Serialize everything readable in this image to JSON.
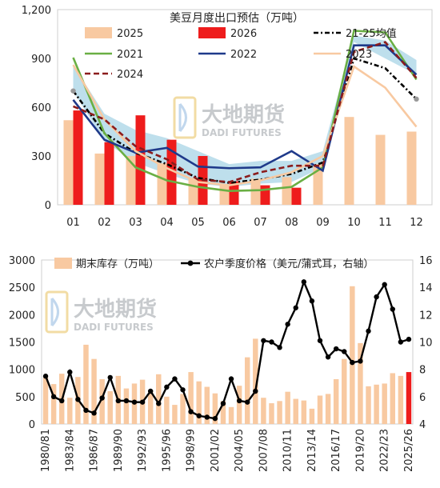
{
  "chart_data": [
    {
      "type": "bar",
      "title": "美豆月度出口预估（万吨）",
      "categories": [
        "01",
        "02",
        "03",
        "04",
        "05",
        "06",
        "07",
        "08",
        "09",
        "10",
        "11",
        "12"
      ],
      "ylim": [
        0,
        1200
      ],
      "yticks": [
        "0",
        "300",
        "600",
        "900",
        "1,200"
      ],
      "grid": false,
      "band": {
        "low": [
          700,
          390,
          260,
          190,
          130,
          110,
          130,
          140,
          230,
          1000,
          900,
          800
        ],
        "high": [
          860,
          560,
          460,
          410,
          330,
          250,
          270,
          270,
          330,
          1040,
          1010,
          890
        ]
      },
      "series": [
        {
          "name": "2025",
          "kind": "bar",
          "color": "#f8c9a1",
          "values": [
            520,
            315,
            300,
            255,
            165,
            120,
            160,
            170,
            250,
            540,
            430,
            450
          ]
        },
        {
          "name": "2026",
          "kind": "bar",
          "color": "#ee1c1c",
          "values": [
            580,
            385,
            550,
            400,
            300,
            145,
            120,
            105,
            null,
            null,
            null,
            null
          ]
        },
        {
          "name": "21-25均值",
          "kind": "line",
          "color": "#000000",
          "dash": "dash-dot",
          "values": [
            700,
            440,
            320,
            250,
            165,
            135,
            155,
            190,
            260,
            900,
            840,
            650
          ]
        },
        {
          "name": "2021",
          "kind": "line",
          "color": "#6aaf44",
          "values": [
            905,
            440,
            230,
            150,
            110,
            85,
            90,
            110,
            230,
            1070,
            1060,
            770
          ]
        },
        {
          "name": "2022",
          "kind": "line",
          "color": "#1f3a8a",
          "values": [
            645,
            400,
            320,
            350,
            235,
            225,
            230,
            330,
            210,
            980,
            980,
            800
          ]
        },
        {
          "name": "2023",
          "kind": "line",
          "color": "#f8c9a1",
          "values": [
            860,
            525,
            330,
            225,
            140,
            120,
            150,
            200,
            300,
            850,
            720,
            480
          ]
        },
        {
          "name": "2024",
          "kind": "line",
          "color": "#8b1c1c",
          "dash": "dash",
          "values": [
            605,
            525,
            360,
            280,
            155,
            140,
            200,
            240,
            240,
            940,
            1000,
            780
          ]
        }
      ]
    },
    {
      "type": "bar",
      "categories": [
        "1980/81",
        "1981/82",
        "1982/83",
        "1983/84",
        "1984/85",
        "1985/86",
        "1986/87",
        "1987/88",
        "1988/89",
        "1989/90",
        "1990/91",
        "1991/92",
        "1992/93",
        "1993/94",
        "1994/95",
        "1995/96",
        "1996/97",
        "1997/98",
        "1998/99",
        "1999/00",
        "2000/01",
        "2001/02",
        "2002/03",
        "2003/04",
        "2004/05",
        "2005/06",
        "2006/07",
        "2007/08",
        "2008/09",
        "2009/10",
        "2010/11",
        "2011/12",
        "2012/13",
        "2013/14",
        "2014/15",
        "2015/16",
        "2016/17",
        "2017/18",
        "2018/19",
        "2019/20",
        "2020/21",
        "2021/22",
        "2022/23",
        "2023/24",
        "2024/25",
        "2025/26"
      ],
      "xtick_labels": [
        "1980/81",
        "1983/84",
        "1986/87",
        "1989/90",
        "1992/93",
        "1995/96",
        "1998/99",
        "2001/02",
        "2004/05",
        "2007/08",
        "2010/11",
        "2013/14",
        "2016/17",
        "2019/20",
        "2022/23",
        "2025/26"
      ],
      "ylim_left": [
        0,
        3000
      ],
      "yticks_left": [
        "0",
        "500",
        "1000",
        "1500",
        "2000",
        "2500",
        "3000"
      ],
      "ylim_right": [
        4,
        16
      ],
      "yticks_right": [
        "4",
        "6",
        "8",
        "10",
        "12",
        "14",
        "16"
      ],
      "highlight_color": "#ee1c1c",
      "series": [
        {
          "name": "期末库存（万吨）",
          "kind": "bar",
          "color": "#f8c9a1",
          "axis": "left",
          "values": [
            850,
            730,
            920,
            480,
            860,
            1450,
            1190,
            820,
            600,
            880,
            650,
            740,
            810,
            620,
            910,
            500,
            350,
            550,
            950,
            780,
            680,
            560,
            420,
            310,
            700,
            1220,
            1560,
            480,
            380,
            420,
            590,
            460,
            430,
            280,
            520,
            550,
            820,
            1190,
            2520,
            1480,
            690,
            720,
            740,
            930,
            880,
            950
          ],
          "highlight_last": true
        },
        {
          "name": "农户季度价格（美元/蒲式耳，右轴）",
          "kind": "line",
          "color": "#000000",
          "axis": "right",
          "values": [
            7.5,
            6.0,
            5.7,
            7.8,
            5.8,
            5.0,
            4.8,
            5.9,
            7.4,
            5.7,
            5.7,
            5.6,
            5.6,
            6.4,
            5.5,
            6.7,
            7.3,
            6.5,
            4.9,
            4.6,
            4.5,
            4.4,
            5.5,
            7.3,
            5.7,
            5.6,
            6.4,
            10.1,
            10.0,
            9.6,
            11.3,
            12.5,
            14.4,
            13.0,
            10.1,
            8.9,
            9.5,
            9.3,
            8.5,
            8.6,
            10.8,
            13.3,
            14.2,
            12.4,
            10.0,
            10.2
          ]
        }
      ]
    }
  ],
  "watermark": {
    "brand_cn": "大地期货",
    "brand_en": "DADI FUTURES"
  }
}
